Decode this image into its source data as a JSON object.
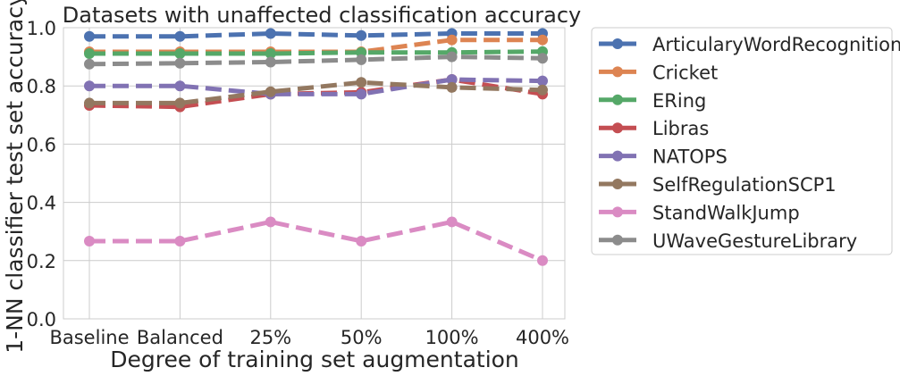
{
  "chart_data": {
    "type": "line",
    "title": "Datasets with unaffected classification accuracy",
    "xlabel": "Degree of training set augmentation",
    "ylabel": "1-NN classifier test set accuracy",
    "categories": [
      "Baseline",
      "Balanced",
      "25%",
      "50%",
      "100%",
      "400%"
    ],
    "ylim": [
      0,
      1.0
    ],
    "yticks": [
      "0.0",
      "0.2",
      "0.4",
      "0.6",
      "0.8",
      "1.0"
    ],
    "grid": true,
    "legend_position": "outside-right",
    "series": [
      {
        "name": "ArticularyWordRecognition",
        "color": "#4c72b0",
        "values": [
          0.97,
          0.97,
          0.98,
          0.973,
          0.98,
          0.98
        ]
      },
      {
        "name": "Cricket",
        "color": "#dd8452",
        "values": [
          0.917,
          0.917,
          0.917,
          0.917,
          0.958,
          0.958
        ]
      },
      {
        "name": "ERing",
        "color": "#55a868",
        "values": [
          0.911,
          0.911,
          0.911,
          0.915,
          0.915,
          0.918
        ]
      },
      {
        "name": "Libras",
        "color": "#c44e52",
        "values": [
          0.733,
          0.728,
          0.772,
          0.778,
          0.822,
          0.772
        ]
      },
      {
        "name": "NATOPS",
        "color": "#8172b3",
        "values": [
          0.8,
          0.8,
          0.772,
          0.772,
          0.822,
          0.817
        ]
      },
      {
        "name": "SelfRegulationSCP1",
        "color": "#937860",
        "values": [
          0.741,
          0.741,
          0.78,
          0.812,
          0.795,
          0.786
        ]
      },
      {
        "name": "StandWalkJump",
        "color": "#da8bc3",
        "values": [
          0.267,
          0.267,
          0.333,
          0.267,
          0.333,
          0.2
        ]
      },
      {
        "name": "UWaveGestureLibrary",
        "color": "#8c8c8c",
        "values": [
          0.875,
          0.878,
          0.882,
          0.89,
          0.9,
          0.895
        ]
      }
    ]
  }
}
